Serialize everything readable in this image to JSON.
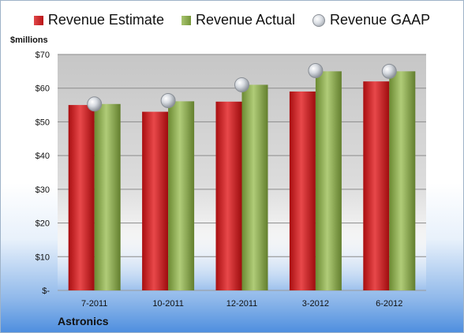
{
  "chart_data": {
    "type": "bar",
    "categories": [
      "7-2011",
      "10-2011",
      "12-2011",
      "3-2012",
      "6-2012"
    ],
    "series": [
      {
        "name": "Revenue Estimate",
        "type": "bar",
        "color": "#c8191c",
        "values": [
          55.0,
          53.0,
          56.0,
          59.0,
          62.0
        ]
      },
      {
        "name": "Revenue Actual",
        "type": "bar",
        "color": "#8aab4c",
        "values": [
          55.3,
          56.1,
          61.0,
          65.0,
          65.0
        ]
      },
      {
        "name": "Revenue GAAP",
        "type": "marker",
        "color": "#b0b5bc",
        "values": [
          55.3,
          56.3,
          61.0,
          65.2,
          65.0
        ]
      }
    ],
    "ylabel": "$millions",
    "ylim": [
      0,
      70
    ],
    "yticks": [
      0,
      10,
      20,
      30,
      40,
      50,
      60,
      70
    ],
    "ytick_labels": [
      "$-",
      "$10",
      "$20",
      "$30",
      "$40",
      "$50",
      "$60",
      "$70"
    ],
    "grid": true,
    "legend": "top"
  },
  "company": "Astronics"
}
